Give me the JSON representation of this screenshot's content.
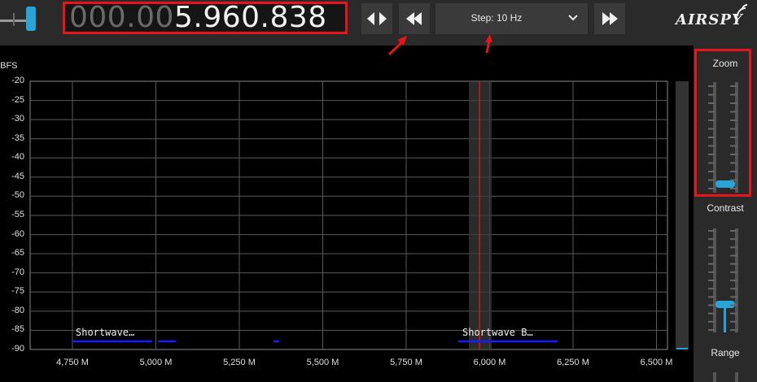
{
  "toolbar": {
    "frequency_dim": "000.00",
    "frequency_bright": "5.960.838",
    "step_label": "Step: 10 Hz",
    "logo": "AIRSPY"
  },
  "spectrum": {
    "y_unit": "dBFS",
    "y_ticks": [
      "-20",
      "-25",
      "-30",
      "-35",
      "-40",
      "-45",
      "-50",
      "-55",
      "-60",
      "-65",
      "-70",
      "-75",
      "-80",
      "-85",
      "-90"
    ],
    "x_ticks": [
      "4,750 M",
      "5,000 M",
      "5,250 M",
      "5,500 M",
      "5,750 M",
      "6,000 M",
      "6,250 M",
      "6,500 M"
    ],
    "band_labels": [
      "Shortwave…",
      "Shortwave B…"
    ]
  },
  "right_panel": {
    "zoom_label": "Zoom",
    "contrast_label": "Contrast",
    "range_label": "Range"
  },
  "colors": {
    "accent": "#29a4d9",
    "highlight_border": "#e8141b",
    "band_marker": "#1a1aff",
    "tuning_line": "#e8141b"
  }
}
